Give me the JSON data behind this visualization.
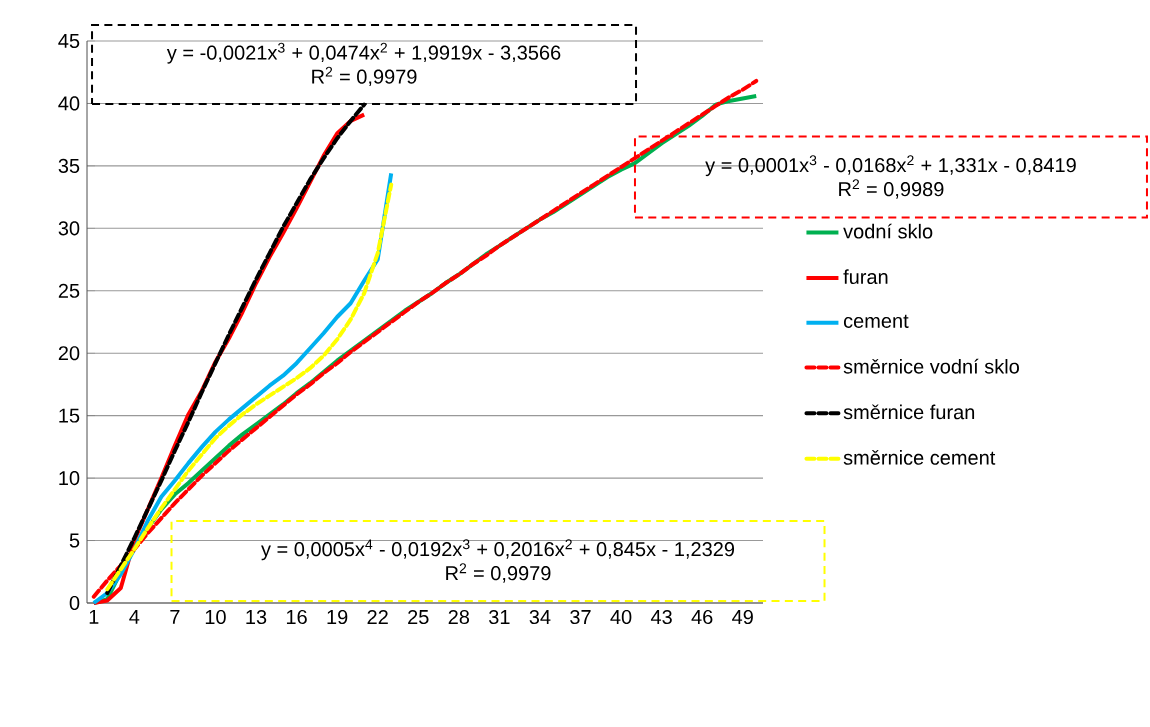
{
  "chart_data": {
    "type": "line",
    "categories": [
      "1",
      null,
      null,
      "4",
      null,
      null,
      "7",
      null,
      null,
      "10",
      null,
      null,
      "13",
      null,
      null,
      "16",
      null,
      null,
      "19",
      null,
      null,
      "22",
      null,
      null,
      "25",
      null,
      null,
      "28",
      null,
      null,
      "31",
      null,
      null,
      "34",
      null,
      null,
      "37",
      null,
      null,
      "40",
      null,
      null,
      "43",
      null,
      null,
      "46",
      null,
      null,
      "49",
      null
    ],
    "series": [
      {
        "name": "vodní sklo",
        "color": "#00b050",
        "line_style": "solid",
        "values": [
          0,
          0.3,
          2.5,
          4.5,
          6,
          7.5,
          8.7,
          9.6,
          10.6,
          11.6,
          12.6,
          13.5,
          14.3,
          15.1,
          15.9,
          16.8,
          17.6,
          18.5,
          19.4,
          20.2,
          21.0,
          21.8,
          22.6,
          23.4,
          24.1,
          24.8,
          25.6,
          26.3,
          27.1,
          27.9,
          28.6,
          29.3,
          30.0,
          30.7,
          31.3,
          32.0,
          32.7,
          33.4,
          34.1,
          34.7,
          35.2,
          36.0,
          36.8,
          37.5,
          38.2,
          39.0,
          39.9,
          40.2,
          40.4,
          40.6
        ]
      },
      {
        "name": "furan",
        "color": "#ff0000",
        "line_style": "solid",
        "values": [
          0,
          0.2,
          1.2,
          5,
          7.5,
          10,
          12.6,
          15.1,
          17,
          19.3,
          21.2,
          23.3,
          25.6,
          27.7,
          29.6,
          31.6,
          33.7,
          35.8,
          37.6,
          38.6,
          39.1,
          null,
          null,
          null,
          null,
          null,
          null,
          null,
          null,
          null,
          null,
          null,
          null,
          null,
          null,
          null,
          null,
          null,
          null,
          null,
          null,
          null,
          null,
          null,
          null,
          null,
          null,
          null,
          null,
          null
        ]
      },
      {
        "name": "cement",
        "color": "#00b0f0",
        "line_style": "solid",
        "values": [
          0,
          0.8,
          2.3,
          4.3,
          6.6,
          8.5,
          9.8,
          11.2,
          12.5,
          13.7,
          14.7,
          15.6,
          16.5,
          17.4,
          18.2,
          19.2,
          20.4,
          21.6,
          22.9,
          24.0,
          25.8,
          27.5,
          34.4,
          null,
          null,
          null,
          null,
          null,
          null,
          null,
          null,
          null,
          null,
          null,
          null,
          null,
          null,
          null,
          null,
          null,
          null,
          null,
          null,
          null,
          null,
          null,
          null,
          null,
          null,
          null
        ]
      },
      {
        "name": "směrnice vodní sklo",
        "color": "#ff0000",
        "line_style": "dashed",
        "values": [
          0.5,
          1.8,
          3.0,
          4.3,
          5.6,
          6.8,
          8.0,
          9.1,
          10.2,
          11.2,
          12.2,
          13.1,
          14.0,
          14.9,
          15.8,
          16.7,
          17.5,
          18.4,
          19.2,
          20.1,
          20.9,
          21.7,
          22.5,
          23.3,
          24.1,
          24.8,
          25.6,
          26.3,
          27.1,
          27.8,
          28.6,
          29.3,
          30.0,
          30.7,
          31.4,
          32.1,
          32.8,
          33.5,
          34.2,
          34.9,
          35.6,
          36.3,
          37.0,
          37.7,
          38.4,
          39.1,
          39.8,
          40.5,
          41.1,
          41.8
        ]
      },
      {
        "name": "směrnice furan",
        "color": "#000000",
        "line_style": "dashed",
        "values": [
          null,
          0.8,
          3.0,
          5.2,
          7.5,
          9.8,
          12.2,
          14.5,
          16.9,
          19.2,
          21.5,
          23.7,
          25.9,
          28.0,
          30.1,
          32.0,
          33.9,
          35.6,
          37.2,
          38.6,
          39.9,
          null,
          null,
          null,
          null,
          null,
          null,
          null,
          null,
          null,
          null,
          null,
          null,
          null,
          null,
          null,
          null,
          null,
          null,
          null,
          null,
          null,
          null,
          null,
          null,
          null,
          null,
          null,
          null,
          null
        ]
      },
      {
        "name": "směrnice cement",
        "color": "#ffff00",
        "line_style": "dashed",
        "values": [
          null,
          1.1,
          2.7,
          4.3,
          6.0,
          7.6,
          9.1,
          10.6,
          11.9,
          13.2,
          14.2,
          15.1,
          15.9,
          16.6,
          17.3,
          18.0,
          18.8,
          19.8,
          21.1,
          22.7,
          24.8,
          28.0,
          33.5,
          null,
          null,
          null,
          null,
          null,
          null,
          null,
          null,
          null,
          null,
          null,
          null,
          null,
          null,
          null,
          null,
          null,
          null,
          null,
          null,
          null,
          null,
          null,
          null,
          null,
          null,
          null
        ]
      }
    ],
    "ylim": [
      0,
      45
    ],
    "yticks": [
      0,
      5,
      10,
      15,
      20,
      25,
      30,
      35,
      40,
      45
    ],
    "grid": "y",
    "legend": "right",
    "annotations": [
      "y = -0,0021x$^{3}$ + 0,0474x$^{2}$ + 1,9919x - 3,3566",
      "R$^{2}$ = 0,9979",
      "y = 0,0001x$^{3}$ - 0,0168x$^{2}$ + 1,331x - 0,8419",
      "R$^{2}$ = 0,9989",
      "y = 0,0005x$^{4}$ - 0,0192x$^{3}$ + 0,2016x$^{2}$ + 0,845x - 1,2329",
      "R$^{2}$ = 0,9979"
    ]
  }
}
